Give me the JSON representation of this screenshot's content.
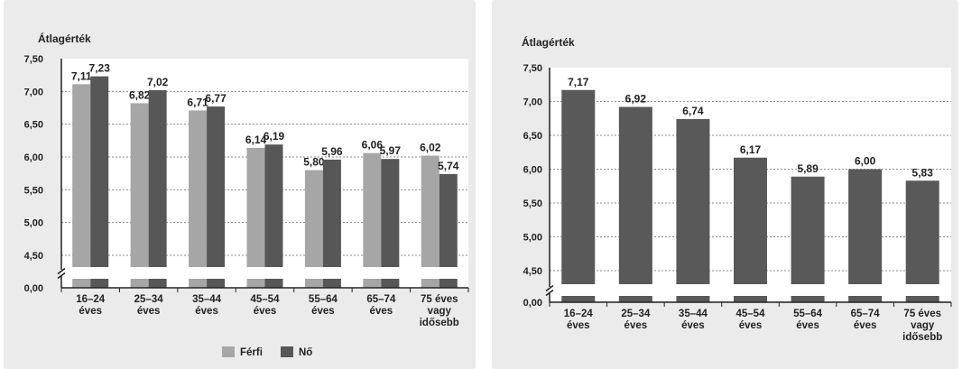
{
  "chart_data": [
    {
      "type": "bar",
      "ylabel": "Átlagérték",
      "yticks": [
        "7,50",
        "7,00",
        "6,50",
        "6,00",
        "5,50",
        "5,00",
        "4,50",
        "0,00"
      ],
      "ylim": [
        4.5,
        7.5
      ],
      "axis_break": true,
      "grid": true,
      "legend_position": "bottom",
      "categories": [
        [
          "16–24",
          "éves"
        ],
        [
          "25–34",
          "éves"
        ],
        [
          "35–44",
          "éves"
        ],
        [
          "45–54",
          "éves"
        ],
        [
          "55–64",
          "éves"
        ],
        [
          "65–74",
          "éves"
        ],
        [
          "75 éves",
          "vagy",
          "idősebb"
        ]
      ],
      "series": [
        {
          "name": "Férfi",
          "color": "#a6a6a6",
          "values": [
            7.11,
            6.82,
            6.71,
            6.14,
            5.8,
            6.06,
            6.02
          ],
          "labels": [
            "7,11",
            "6,82",
            "6,71",
            "6,14",
            "5,80",
            "6,06",
            "6,02"
          ]
        },
        {
          "name": "Nő",
          "color": "#575757",
          "values": [
            7.23,
            7.02,
            6.77,
            6.19,
            5.96,
            5.97,
            5.74
          ],
          "labels": [
            "7,23",
            "7,02",
            "6,77",
            "6,19",
            "5,96",
            "5,97",
            "5,74"
          ]
        }
      ]
    },
    {
      "type": "bar",
      "ylabel": "Átlagérték",
      "yticks": [
        "7,50",
        "7,00",
        "6,50",
        "6,00",
        "5,50",
        "5,00",
        "4,50",
        "0,00"
      ],
      "ylim": [
        4.5,
        7.5
      ],
      "axis_break": true,
      "grid": true,
      "categories": [
        [
          "16–24",
          "éves"
        ],
        [
          "25–34",
          "éves"
        ],
        [
          "35–44",
          "éves"
        ],
        [
          "45–54",
          "éves"
        ],
        [
          "55–64",
          "éves"
        ],
        [
          "65–74",
          "éves"
        ],
        [
          "75 éves",
          "vagy",
          "idősebb"
        ]
      ],
      "series": [
        {
          "color": "#595959",
          "values": [
            7.17,
            6.92,
            6.74,
            6.17,
            5.89,
            6.0,
            5.83
          ],
          "labels": [
            "7,17",
            "6,92",
            "6,74",
            "6,17",
            "5,89",
            "6,00",
            "5,83"
          ]
        }
      ]
    }
  ]
}
